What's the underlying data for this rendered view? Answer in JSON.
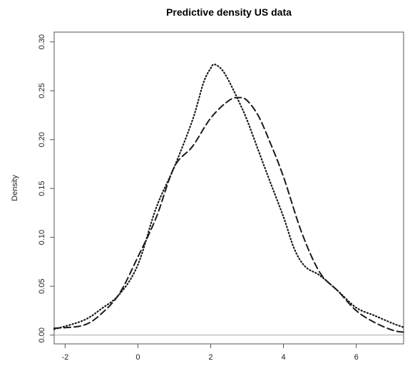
{
  "chart_data": {
    "type": "line",
    "title": "Predictive density US data",
    "xlabel": "",
    "ylabel": "Density",
    "xlim": [
      -2.3,
      7.3
    ],
    "ylim": [
      -0.009,
      0.31
    ],
    "x_ticks": [
      -2,
      0,
      2,
      4,
      6
    ],
    "x_tick_labels": [
      "-2",
      "0",
      "2",
      "4",
      "6"
    ],
    "y_ticks": [
      0.0,
      0.05,
      0.1,
      0.15,
      0.2,
      0.25,
      0.3
    ],
    "y_tick_labels": [
      "0.00",
      "0.05",
      "0.10",
      "0.15",
      "0.20",
      "0.25",
      "0.30"
    ],
    "baseline": 0,
    "grid": false,
    "series": [
      {
        "style": "dotted",
        "color": "#1a1a1a",
        "x": [
          -2.3,
          -1.5,
          -1.0,
          -0.5,
          0.0,
          0.5,
          1.0,
          1.5,
          1.8,
          2.0,
          2.1,
          2.3,
          2.5,
          2.8,
          3.0,
          3.3,
          3.6,
          4.0,
          4.3,
          4.6,
          5.0,
          5.5,
          6.0,
          6.5,
          7.0,
          7.3
        ],
        "y": [
          0.006,
          0.015,
          0.027,
          0.042,
          0.072,
          0.13,
          0.172,
          0.22,
          0.258,
          0.273,
          0.277,
          0.272,
          0.26,
          0.237,
          0.22,
          0.19,
          0.16,
          0.121,
          0.088,
          0.07,
          0.061,
          0.045,
          0.028,
          0.02,
          0.012,
          0.008
        ]
      },
      {
        "style": "dashed",
        "color": "#1a1a1a",
        "x": [
          -2.3,
          -1.5,
          -1.0,
          -0.5,
          0.0,
          0.5,
          1.0,
          1.5,
          2.0,
          2.5,
          2.8,
          3.0,
          3.3,
          3.6,
          4.0,
          4.5,
          5.0,
          5.5,
          6.0,
          6.5,
          7.0,
          7.3
        ],
        "y": [
          0.007,
          0.01,
          0.022,
          0.043,
          0.08,
          0.12,
          0.172,
          0.193,
          0.222,
          0.24,
          0.243,
          0.24,
          0.225,
          0.2,
          0.162,
          0.105,
          0.064,
          0.045,
          0.025,
          0.013,
          0.005,
          0.003
        ]
      }
    ]
  }
}
